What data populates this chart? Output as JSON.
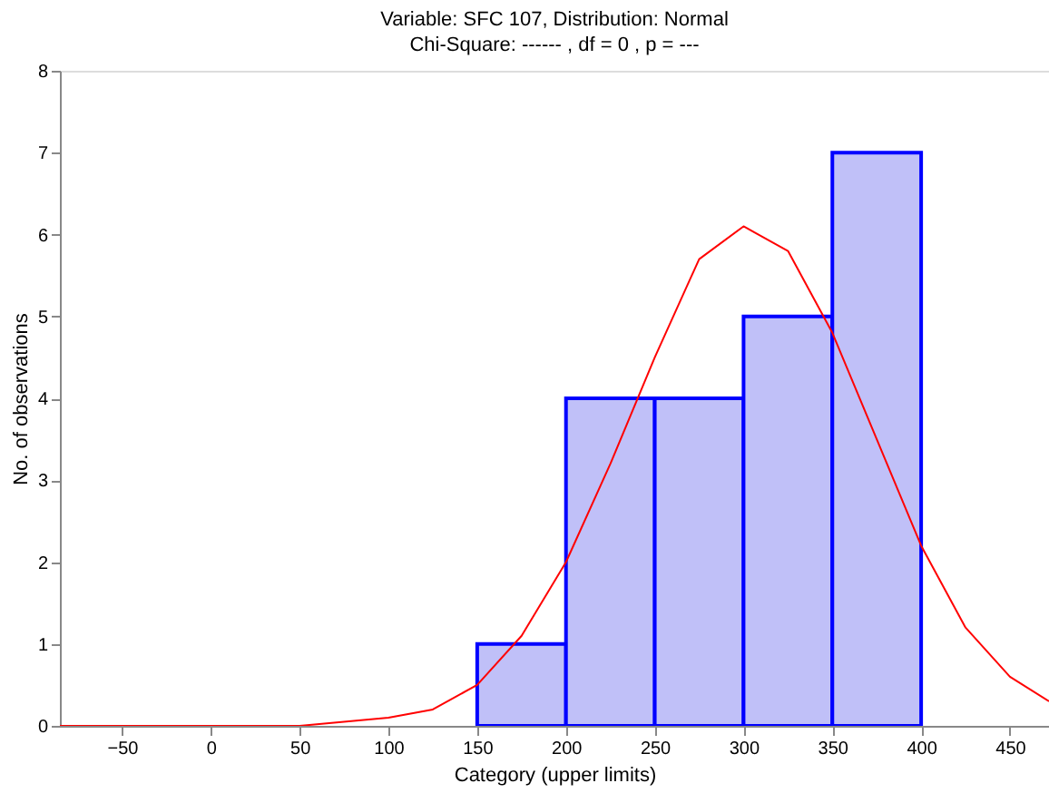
{
  "chart_data": {
    "type": "histogram",
    "title": "Variable: SFC 107, Distribution: Normal",
    "subtitle": "Chi-Square:  ------ , df =  0 , p = ---",
    "xlabel": "Category (upper limits)",
    "ylabel": "No. of observations",
    "xlim": [
      -85,
      472
    ],
    "xticks": [
      -50,
      0,
      50,
      100,
      150,
      200,
      250,
      300,
      350,
      400,
      450
    ],
    "ylim": [
      0,
      8
    ],
    "yticks": [
      0,
      1,
      2,
      3,
      4,
      5,
      6,
      7,
      8
    ],
    "grid": false,
    "series": [
      {
        "color": "#c0c0f8",
        "bins": [
          150,
          200,
          250,
          300,
          350,
          400
        ],
        "values": [
          1,
          4,
          4,
          5,
          7
        ]
      },
      {
        "type": "line",
        "color": "#ff0000",
        "x": [
          -85,
          0,
          50,
          100,
          125,
          150,
          175,
          200,
          225,
          250,
          275,
          300,
          325,
          350,
          375,
          400,
          425,
          450,
          472
        ],
        "values": [
          0,
          0,
          0,
          0.1,
          0.2,
          0.5,
          1.1,
          2.0,
          3.2,
          4.5,
          5.7,
          6.1,
          5.8,
          4.8,
          3.5,
          2.2,
          1.2,
          0.6,
          0.3
        ]
      }
    ]
  }
}
